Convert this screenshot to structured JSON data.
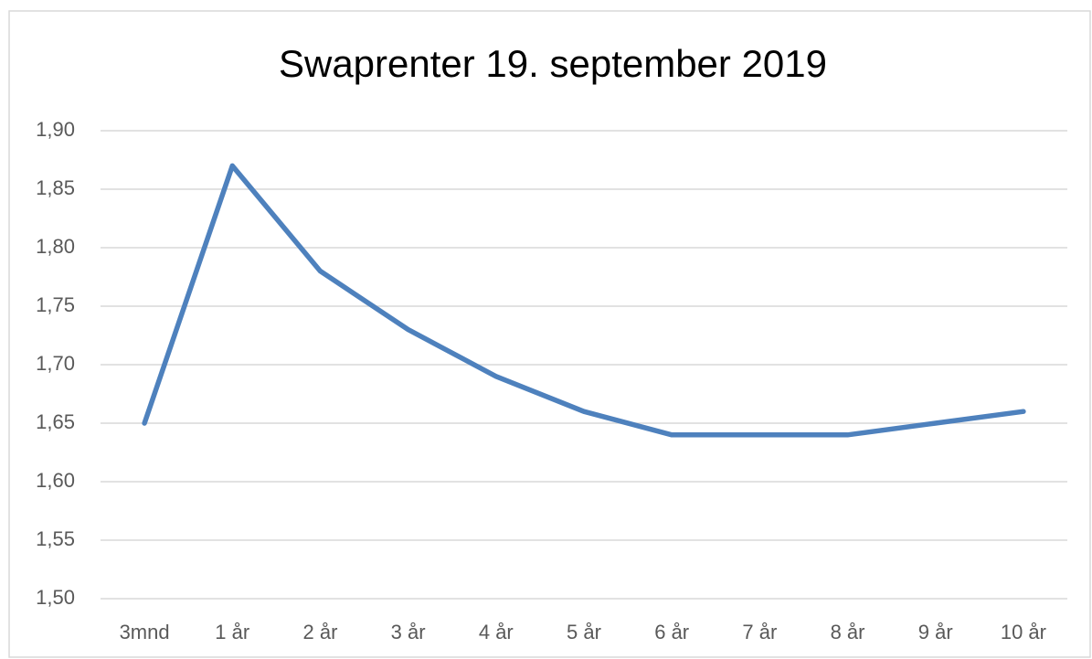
{
  "chart_data": {
    "type": "line",
    "title": "Swaprenter 19. september 2019",
    "categories": [
      "3mnd",
      "1 år",
      "2 år",
      "3 år",
      "4 år",
      "5 år",
      "6 år",
      "7 år",
      "8 år",
      "9 år",
      "10 år"
    ],
    "series": [
      {
        "color": "#4e81bd",
        "values": [
          1.65,
          1.87,
          1.78,
          1.73,
          1.69,
          1.66,
          1.64,
          1.64,
          1.64,
          1.65,
          1.66
        ]
      }
    ],
    "ylim": [
      1.5,
      1.9
    ],
    "yticks": [
      {
        "value": 1.5,
        "label": "1,50"
      },
      {
        "value": 1.55,
        "label": "1,55"
      },
      {
        "value": 1.6,
        "label": "1,60"
      },
      {
        "value": 1.65,
        "label": "1,65"
      },
      {
        "value": 1.7,
        "label": "1,70"
      },
      {
        "value": 1.75,
        "label": "1,75"
      },
      {
        "value": 1.8,
        "label": "1,80"
      },
      {
        "value": 1.85,
        "label": "1,85"
      },
      {
        "value": 1.9,
        "label": "1,90"
      }
    ],
    "grid": true
  }
}
